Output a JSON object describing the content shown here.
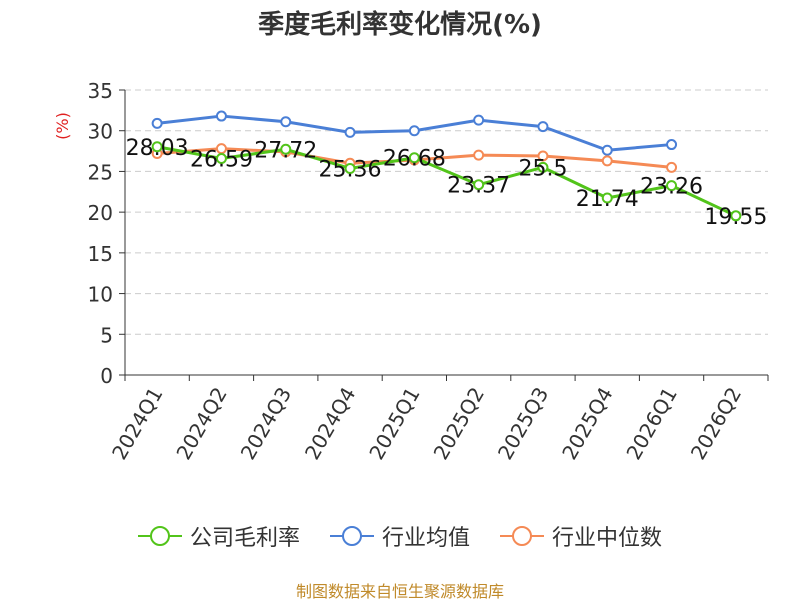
{
  "chart_data": {
    "type": "line",
    "title": "季度毛利率变化情况(%)",
    "ylabel": "(%)",
    "categories": [
      "2024Q1",
      "2024Q2",
      "2024Q3",
      "2024Q4",
      "2025Q1",
      "2025Q2",
      "2025Q3",
      "2025Q4",
      "2026Q1",
      "2026Q2"
    ],
    "yticks": [
      0,
      5,
      10,
      15,
      20,
      25,
      30,
      35
    ],
    "ylim": [
      0,
      35
    ],
    "grid": true,
    "legend_position": "bottom",
    "series": [
      {
        "name": "公司毛利率",
        "color": "#52c41a",
        "values": [
          28.03,
          26.59,
          27.72,
          25.36,
          26.68,
          23.37,
          25.5,
          21.74,
          23.26,
          19.55
        ],
        "labels": [
          "28.03",
          "26.59",
          "27.72",
          "25.36",
          "26.68",
          "23.37",
          "25.5",
          "21.74",
          "23.26",
          "19.55"
        ]
      },
      {
        "name": "行业均值",
        "color": "#4a7fd6",
        "values": [
          30.9,
          31.8,
          31.1,
          29.8,
          30.0,
          31.3,
          30.5,
          27.6,
          28.3,
          null
        ]
      },
      {
        "name": "行业中位数",
        "color": "#f58a55",
        "values": [
          27.2,
          27.8,
          27.4,
          26.0,
          26.4,
          27.0,
          26.9,
          26.3,
          25.5,
          null
        ]
      }
    ]
  },
  "footer": {
    "source": "制图数据来自恒生聚源数据库"
  }
}
